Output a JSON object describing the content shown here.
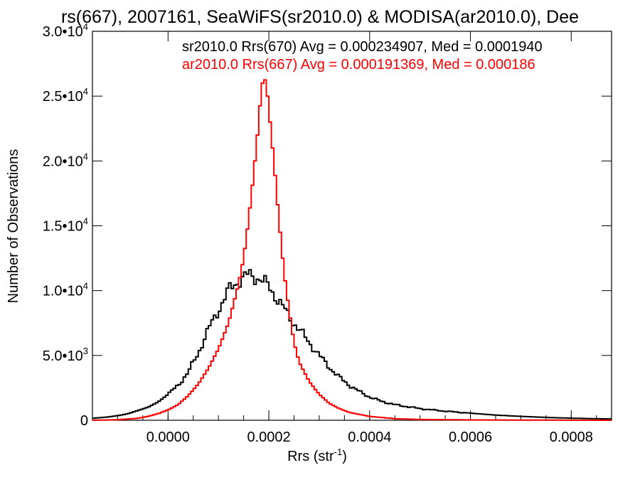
{
  "chart_data": {
    "type": "line",
    "title": "rs(667), 2007161, SeaWiFS(sr2010.0) & MODISA(ar2010.0), Dee",
    "xlabel": "Rrs (str",
    "xlabel_exp": "-1",
    "xlabel_tail": ")",
    "ylabel": "Number of Observations",
    "xlim": [
      -0.00015,
      0.00088
    ],
    "ylim": [
      0,
      30000
    ],
    "xticks": [
      {
        "v": 0.0,
        "label": "0.0000"
      },
      {
        "v": 0.0002,
        "label": "0.0002"
      },
      {
        "v": 0.0004,
        "label": "0.0004"
      },
      {
        "v": 0.0006,
        "label": "0.0006"
      },
      {
        "v": 0.0008,
        "label": "0.0008"
      }
    ],
    "yticks": [
      {
        "v": 0,
        "mant": "0",
        "exp": ""
      },
      {
        "v": 5000,
        "mant": "5.0•10",
        "exp": "3"
      },
      {
        "v": 10000,
        "mant": "1.0•10",
        "exp": "4"
      },
      {
        "v": 15000,
        "mant": "1.5•10",
        "exp": "4"
      },
      {
        "v": 20000,
        "mant": "2.0•10",
        "exp": "4"
      },
      {
        "v": 25000,
        "mant": "2.5•10",
        "exp": "4"
      },
      {
        "v": 30000,
        "mant": "3.0•10",
        "exp": "4"
      }
    ],
    "binwidth": 5e-06,
    "series": [
      {
        "name": "sr2010.0 Rrs(670)",
        "color": "#000000",
        "legend": "sr2010.0 Rrs(670) Avg = 0.000234907, Med = 0.0001940",
        "points": [
          [
            -0.00015,
            150
          ],
          [
            -0.00012,
            250
          ],
          [
            -0.0001,
            350
          ],
          [
            -8e-05,
            500
          ],
          [
            -6e-05,
            750
          ],
          [
            -4e-05,
            1000
          ],
          [
            -2e-05,
            1400
          ],
          [
            0.0,
            2000
          ],
          [
            2e-05,
            2700
          ],
          [
            4e-05,
            3700
          ],
          [
            6e-05,
            5200
          ],
          [
            8e-05,
            7000
          ],
          [
            0.0001,
            8500
          ],
          [
            0.00012,
            10000
          ],
          [
            0.00014,
            10800
          ],
          [
            0.00016,
            11200
          ],
          [
            0.00018,
            11000
          ],
          [
            0.0002,
            10300
          ],
          [
            0.00022,
            9200
          ],
          [
            0.00024,
            8000
          ],
          [
            0.00026,
            7000
          ],
          [
            0.00028,
            6000
          ],
          [
            0.0003,
            5000
          ],
          [
            0.00032,
            4100
          ],
          [
            0.00034,
            3300
          ],
          [
            0.00036,
            2700
          ],
          [
            0.00038,
            2200
          ],
          [
            0.0004,
            1800
          ],
          [
            0.00042,
            1500
          ],
          [
            0.00045,
            1200
          ],
          [
            0.0005,
            900
          ],
          [
            0.00055,
            700
          ],
          [
            0.0006,
            550
          ],
          [
            0.00065,
            400
          ],
          [
            0.0007,
            300
          ],
          [
            0.00075,
            220
          ],
          [
            0.0008,
            160
          ],
          [
            0.00085,
            120
          ],
          [
            0.00088,
            100
          ]
        ]
      },
      {
        "name": "ar2010.0 Rrs(667)",
        "color": "#ff0000",
        "legend": "ar2010.0 Rrs(667) Avg = 0.000191369, Med = 0.000186",
        "points": [
          [
            -0.00015,
            0
          ],
          [
            -0.0001,
            40
          ],
          [
            -6e-05,
            150
          ],
          [
            -4e-05,
            300
          ],
          [
            -2e-05,
            500
          ],
          [
            0.0,
            800
          ],
          [
            2e-05,
            1200
          ],
          [
            4e-05,
            1900
          ],
          [
            6e-05,
            2800
          ],
          [
            8e-05,
            4000
          ],
          [
            0.0001,
            5500
          ],
          [
            0.00012,
            7500
          ],
          [
            0.00014,
            10500
          ],
          [
            0.00015,
            12500
          ],
          [
            0.00016,
            15500
          ],
          [
            0.00017,
            19000
          ],
          [
            0.00018,
            23000
          ],
          [
            0.000185,
            25500
          ],
          [
            0.00019,
            26500
          ],
          [
            0.000195,
            26000
          ],
          [
            0.0002,
            24000
          ],
          [
            0.00021,
            20000
          ],
          [
            0.00022,
            15500
          ],
          [
            0.00023,
            11500
          ],
          [
            0.00024,
            8500
          ],
          [
            0.00025,
            6000
          ],
          [
            0.00026,
            4500
          ],
          [
            0.00028,
            3000
          ],
          [
            0.0003,
            2000
          ],
          [
            0.00032,
            1300
          ],
          [
            0.00034,
            900
          ],
          [
            0.00036,
            600
          ],
          [
            0.0004,
            300
          ],
          [
            0.00045,
            120
          ],
          [
            0.0005,
            60
          ],
          [
            0.0006,
            30
          ],
          [
            0.0007,
            15
          ],
          [
            0.00088,
            0
          ]
        ]
      }
    ]
  }
}
